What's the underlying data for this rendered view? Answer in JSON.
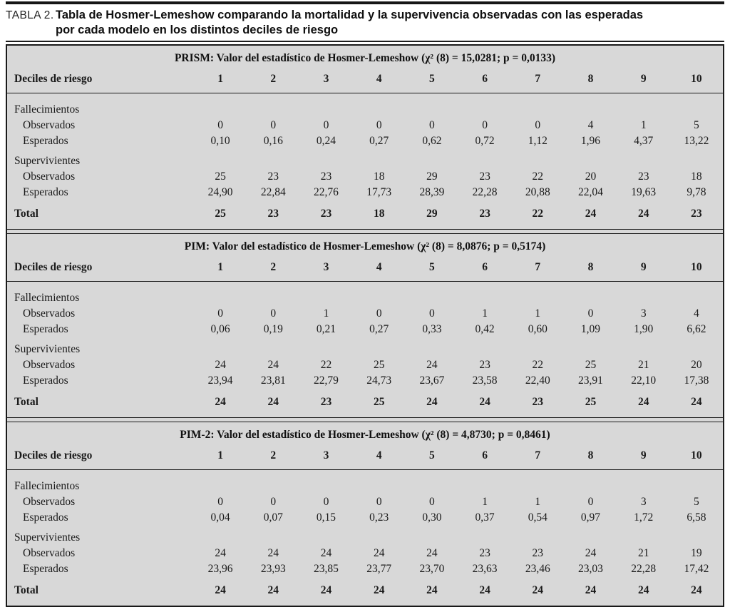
{
  "caption": {
    "label": "TABLA 2.",
    "line1": "Tabla de Hosmer-Lemeshow comparando la mortalidad y la supervivencia observadas con las esperadas",
    "line2": "por cada modelo en los distintos deciles de riesgo"
  },
  "colors": {
    "table_background": "#d8d8d8",
    "border": "#1a1a1a",
    "text": "#1a1a1a"
  },
  "row_labels": {
    "deciles": "Deciles de riesgo",
    "fallecimientos": "Fallecimientos",
    "observados": "Observados",
    "esperados": "Esperados",
    "supervivientes": "Supervivientes",
    "total": "Total"
  },
  "deciles": [
    "1",
    "2",
    "3",
    "4",
    "5",
    "6",
    "7",
    "8",
    "9",
    "10"
  ],
  "sections": [
    {
      "id": "prism",
      "title": "PRISM: Valor del estadístico de Hosmer-Lemeshow (χ² (8) = 15,0281; p = 0,0133)",
      "fallecimientos": {
        "observados": [
          "0",
          "0",
          "0",
          "0",
          "0",
          "0",
          "0",
          "4",
          "1",
          "5"
        ],
        "esperados": [
          "0,10",
          "0,16",
          "0,24",
          "0,27",
          "0,62",
          "0,72",
          "1,12",
          "1,96",
          "4,37",
          "13,22"
        ]
      },
      "supervivientes": {
        "observados": [
          "25",
          "23",
          "23",
          "18",
          "29",
          "23",
          "22",
          "20",
          "23",
          "18"
        ],
        "esperados": [
          "24,90",
          "22,84",
          "22,76",
          "17,73",
          "28,39",
          "22,28",
          "20,88",
          "22,04",
          "19,63",
          "9,78"
        ]
      },
      "total": [
        "25",
        "23",
        "23",
        "18",
        "29",
        "23",
        "22",
        "24",
        "24",
        "23"
      ]
    },
    {
      "id": "pim",
      "title": "PIM: Valor del estadístico de Hosmer-Lemeshow (χ² (8) = 8,0876; p = 0,5174)",
      "fallecimientos": {
        "observados": [
          "0",
          "0",
          "1",
          "0",
          "0",
          "1",
          "1",
          "0",
          "3",
          "4"
        ],
        "esperados": [
          "0,06",
          "0,19",
          "0,21",
          "0,27",
          "0,33",
          "0,42",
          "0,60",
          "1,09",
          "1,90",
          "6,62"
        ]
      },
      "supervivientes": {
        "observados": [
          "24",
          "24",
          "22",
          "25",
          "24",
          "23",
          "22",
          "25",
          "21",
          "20"
        ],
        "esperados": [
          "23,94",
          "23,81",
          "22,79",
          "24,73",
          "23,67",
          "23,58",
          "22,40",
          "23,91",
          "22,10",
          "17,38"
        ]
      },
      "total": [
        "24",
        "24",
        "23",
        "25",
        "24",
        "24",
        "23",
        "25",
        "24",
        "24"
      ]
    },
    {
      "id": "pim2",
      "title": "PIM-2: Valor del estadístico de Hosmer-Lemeshow (χ² (8) = 4,8730; p = 0,8461)",
      "fallecimientos": {
        "observados": [
          "0",
          "0",
          "0",
          "0",
          "0",
          "1",
          "1",
          "0",
          "3",
          "5"
        ],
        "esperados": [
          "0,04",
          "0,07",
          "0,15",
          "0,23",
          "0,30",
          "0,37",
          "0,54",
          "0,97",
          "1,72",
          "6,58"
        ]
      },
      "supervivientes": {
        "observados": [
          "24",
          "24",
          "24",
          "24",
          "24",
          "23",
          "23",
          "24",
          "21",
          "19"
        ],
        "esperados": [
          "23,96",
          "23,93",
          "23,85",
          "23,77",
          "23,70",
          "23,63",
          "23,46",
          "23,03",
          "22,28",
          "17,42"
        ]
      },
      "total": [
        "24",
        "24",
        "24",
        "24",
        "24",
        "24",
        "24",
        "24",
        "24",
        "24"
      ]
    }
  ]
}
